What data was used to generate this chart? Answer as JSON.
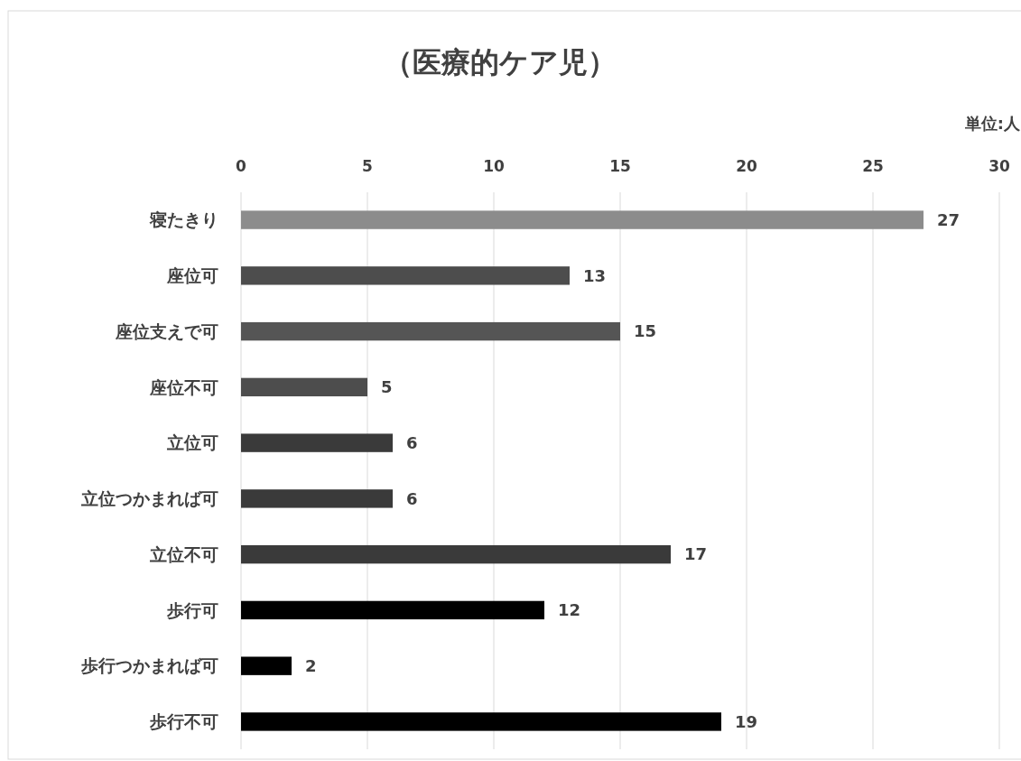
{
  "chart_data": {
    "type": "bar",
    "orientation": "horizontal",
    "title": "（医療的ケア児）",
    "annotations": [
      "単位:人"
    ],
    "categories": [
      "寝たきり",
      "座位可",
      "座位支えで可",
      "座位不可",
      "立位可",
      "立位つかまれば可",
      "立位不可",
      "歩行可",
      "歩行つかまれば可",
      "歩行不可"
    ],
    "values": [
      27,
      13,
      15,
      5,
      6,
      6,
      17,
      12,
      2,
      19
    ],
    "colors": [
      "#8c8c8c",
      "#4d4d4d",
      "#555555",
      "#4d4d4d",
      "#3a3a3a",
      "#3a3a3a",
      "#3a3a3a",
      "#000000",
      "#000000",
      "#000000"
    ],
    "xlim": [
      0,
      30
    ],
    "xticks": [
      0,
      5,
      10,
      15,
      20,
      25,
      30
    ],
    "grid": "x",
    "data_labels": true
  }
}
